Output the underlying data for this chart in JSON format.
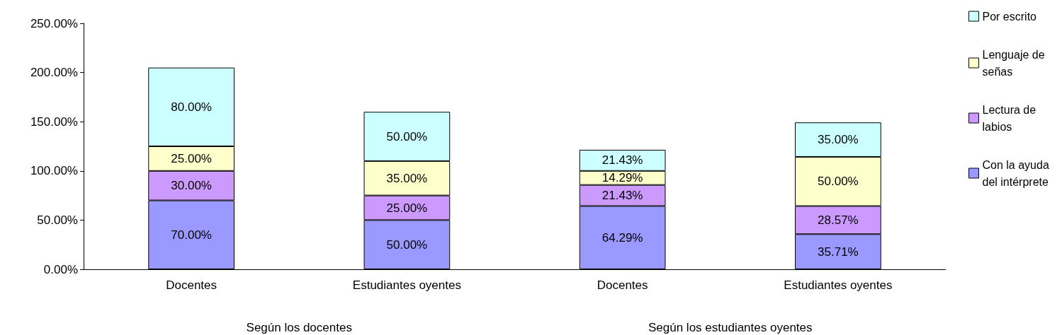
{
  "chart_data": {
    "type": "bar",
    "stacked": true,
    "categories": [
      "Docentes",
      "Estudiantes oyentes",
      "Docentes",
      "Estudiantes oyentes"
    ],
    "series": [
      {
        "name": "Con la ayuda del intérprete",
        "color": "#9999ff",
        "values": [
          70,
          50,
          64.29,
          35.71
        ],
        "value_labels": [
          "70.00%",
          "50.00%",
          "64.29%",
          "35.71%"
        ]
      },
      {
        "name": "Lectura de labios",
        "color": "#cc99ff",
        "values": [
          30,
          25,
          21.43,
          28.57
        ],
        "value_labels": [
          "30.00%",
          "25.00%",
          "21.43%",
          "28.57%"
        ]
      },
      {
        "name": "Lenguaje de señas",
        "color": "#ffffcc",
        "values": [
          25,
          35,
          14.29,
          50
        ],
        "value_labels": [
          "25.00%",
          "35.00%",
          "14.29%",
          "50.00%"
        ]
      },
      {
        "name": "Por escrito",
        "color": "#ccffff",
        "values": [
          80,
          50,
          21.43,
          35
        ],
        "value_labels": [
          "80.00%",
          "50.00%",
          "21.43%",
          "35.00%"
        ]
      }
    ],
    "ylim": [
      0,
      250
    ],
    "yticks": [
      {
        "value": 0,
        "label": "0.00%"
      },
      {
        "value": 50,
        "label": "50.00%"
      },
      {
        "value": 100,
        "label": "100.00%"
      },
      {
        "value": 150,
        "label": "150.00%"
      },
      {
        "value": 200,
        "label": "200.00%"
      },
      {
        "value": 250,
        "label": "250.00%"
      }
    ],
    "grid": false,
    "legend": "right",
    "annotations": [
      "Según los docentes",
      "Según los estudiantes oyentes"
    ]
  }
}
